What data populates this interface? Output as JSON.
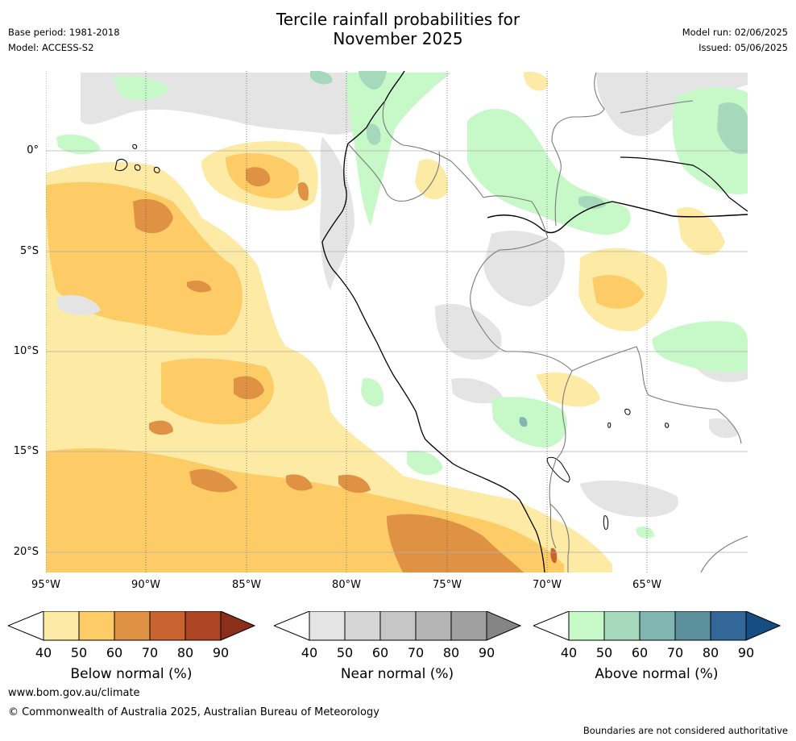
{
  "header": {
    "title_line1": "Tercile rainfall probabilities for",
    "title_line2": "November 2025",
    "base_period": "Base period: 1981-2018",
    "model": "Model: ACCESS-S2",
    "model_run": "Model run: 02/06/2025",
    "issued": "Issued: 05/06/2025"
  },
  "map": {
    "lat_labels": [
      "0°",
      "5°S",
      "10°S",
      "15°S",
      "20°S"
    ],
    "lon_labels": [
      "95°W",
      "90°W",
      "85°W",
      "80°W",
      "75°W",
      "70°W",
      "65°W"
    ],
    "grid": true,
    "region": "Western South America and eastern Pacific"
  },
  "legends": [
    {
      "title": "Below normal (%)",
      "ticks": [
        "40",
        "50",
        "60",
        "70",
        "80",
        "90"
      ],
      "colors": [
        "#fdeba5",
        "#fdcc67",
        "#e09244",
        "#c96430",
        "#ad4524",
        "#8c2e1c"
      ]
    },
    {
      "title": "Near normal (%)",
      "ticks": [
        "40",
        "50",
        "60",
        "70",
        "80",
        "90"
      ],
      "colors": [
        "#e4e4e4",
        "#d5d5d5",
        "#c6c6c6",
        "#b4b4b4",
        "#a0a0a0",
        "#858585"
      ]
    },
    {
      "title": "Above normal (%)",
      "ticks": [
        "40",
        "50",
        "60",
        "70",
        "80",
        "90"
      ],
      "colors": [
        "#c6f8c8",
        "#a6d8bc",
        "#82b6b0",
        "#5b8f9c",
        "#346799",
        "#154e82"
      ]
    }
  ],
  "footer": {
    "url": "www.bom.gov.au/climate",
    "copyright": "© Commonwealth of Australia 2025, Australian Bureau of Meteorology",
    "disclaimer": "Boundaries are not considered authoritative"
  }
}
